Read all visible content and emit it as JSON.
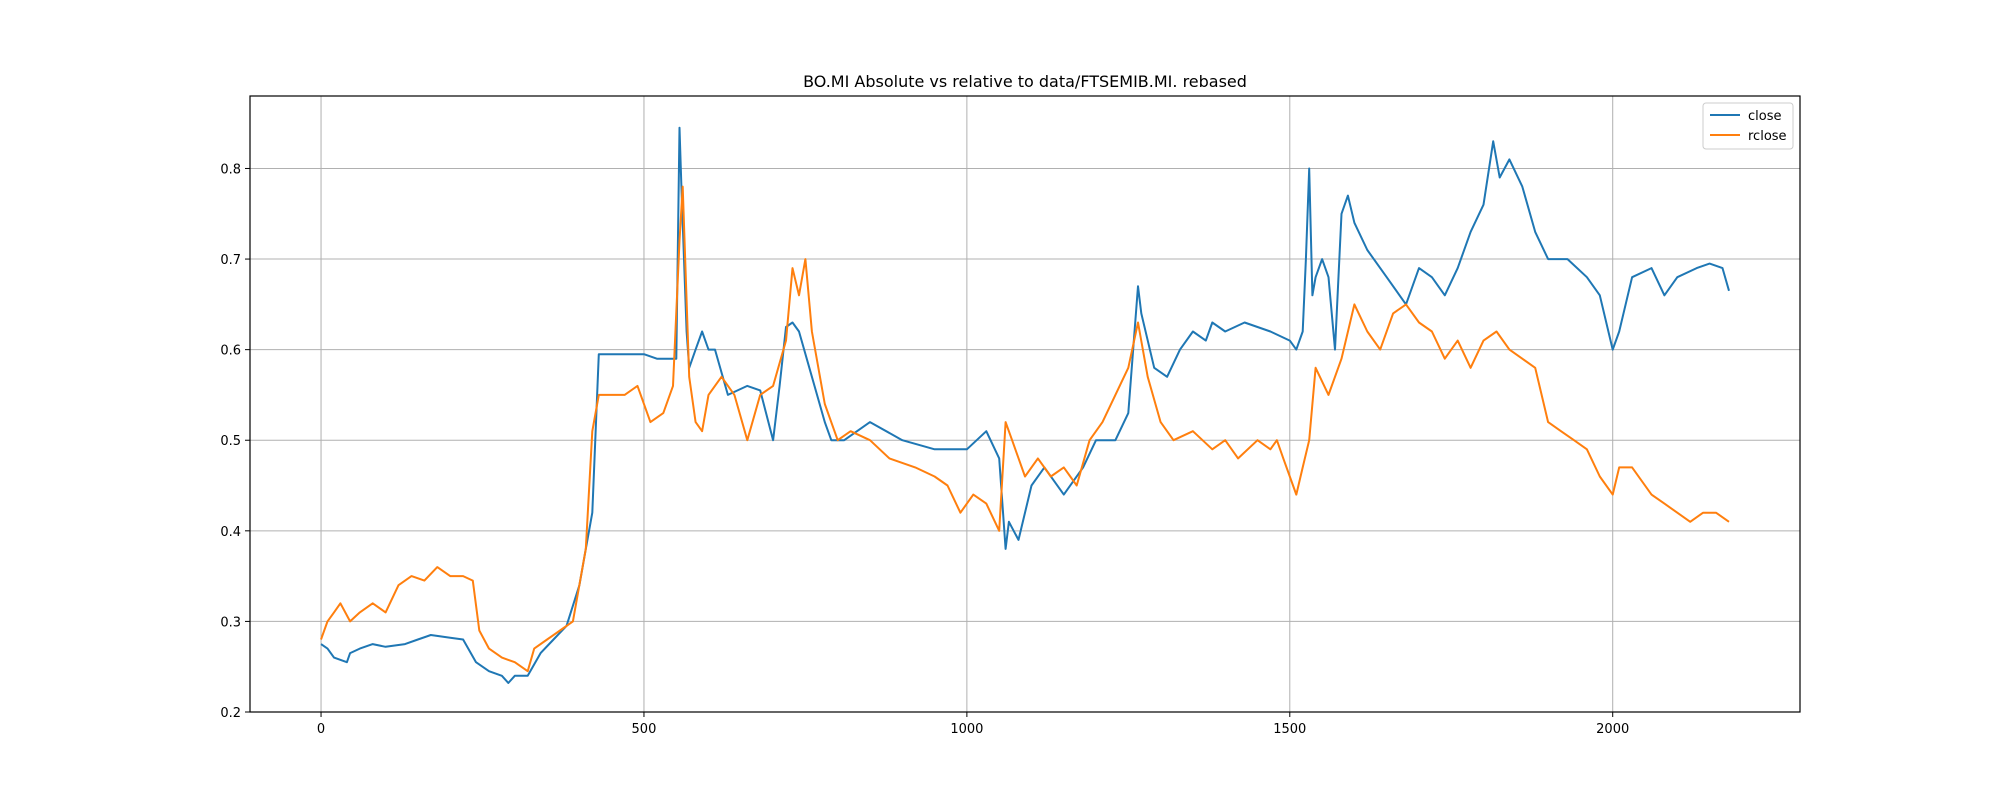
{
  "chart_data": {
    "type": "line",
    "title": "BO.MI Absolute vs relative to data/FTSEMIB.MI. rebased",
    "xlabel": "",
    "ylabel": "",
    "xlim": [
      -110,
      2290
    ],
    "ylim": [
      0.2,
      0.88
    ],
    "xticks": [
      0,
      500,
      1000,
      1500,
      2000
    ],
    "xtick_labels": [
      "0",
      "500",
      "1000",
      "1500",
      "2000"
    ],
    "yticks": [
      0.2,
      0.3,
      0.4,
      0.5,
      0.6,
      0.7,
      0.8
    ],
    "ytick_labels": [
      "0.2",
      "0.3",
      "0.4",
      "0.5",
      "0.6",
      "0.7",
      "0.8"
    ],
    "grid": true,
    "legend_position": "upper right",
    "series": [
      {
        "name": "close",
        "color": "#1f77b4",
        "x": [
          0,
          10,
          20,
          40,
          45,
          60,
          80,
          100,
          130,
          150,
          170,
          200,
          220,
          240,
          260,
          280,
          290,
          300,
          320,
          340,
          360,
          380,
          400,
          410,
          420,
          430,
          440,
          470,
          500,
          520,
          540,
          550,
          555,
          558,
          562,
          566,
          570,
          580,
          590,
          600,
          610,
          630,
          660,
          680,
          700,
          710,
          720,
          730,
          740,
          760,
          780,
          790,
          810,
          850,
          900,
          950,
          1000,
          1030,
          1050,
          1060,
          1065,
          1080,
          1100,
          1120,
          1150,
          1180,
          1200,
          1230,
          1250,
          1265,
          1270,
          1290,
          1310,
          1330,
          1350,
          1370,
          1380,
          1400,
          1430,
          1470,
          1500,
          1510,
          1520,
          1525,
          1530,
          1535,
          1540,
          1550,
          1560,
          1570,
          1580,
          1590,
          1600,
          1620,
          1650,
          1680,
          1700,
          1720,
          1740,
          1760,
          1780,
          1800,
          1815,
          1825,
          1840,
          1860,
          1880,
          1900,
          1930,
          1960,
          1980,
          2000,
          2010,
          2030,
          2060,
          2080,
          2100,
          2130,
          2150,
          2170,
          2180
        ],
        "y": [
          0.275,
          0.27,
          0.26,
          0.255,
          0.265,
          0.27,
          0.275,
          0.272,
          0.275,
          0.28,
          0.285,
          0.282,
          0.28,
          0.255,
          0.245,
          0.24,
          0.232,
          0.24,
          0.24,
          0.265,
          0.28,
          0.295,
          0.34,
          0.38,
          0.42,
          0.595,
          0.595,
          0.595,
          0.595,
          0.59,
          0.59,
          0.59,
          0.845,
          0.78,
          0.7,
          0.62,
          0.58,
          0.6,
          0.62,
          0.6,
          0.6,
          0.55,
          0.56,
          0.555,
          0.5,
          0.56,
          0.625,
          0.63,
          0.62,
          0.57,
          0.52,
          0.5,
          0.5,
          0.52,
          0.5,
          0.49,
          0.49,
          0.51,
          0.48,
          0.38,
          0.41,
          0.39,
          0.45,
          0.47,
          0.44,
          0.47,
          0.5,
          0.5,
          0.53,
          0.67,
          0.64,
          0.58,
          0.57,
          0.6,
          0.62,
          0.61,
          0.63,
          0.62,
          0.63,
          0.62,
          0.61,
          0.6,
          0.62,
          0.7,
          0.8,
          0.66,
          0.68,
          0.7,
          0.68,
          0.6,
          0.75,
          0.77,
          0.74,
          0.71,
          0.68,
          0.65,
          0.69,
          0.68,
          0.66,
          0.69,
          0.73,
          0.76,
          0.83,
          0.79,
          0.81,
          0.78,
          0.73,
          0.7,
          0.7,
          0.68,
          0.66,
          0.6,
          0.62,
          0.68,
          0.69,
          0.66,
          0.68,
          0.69,
          0.695,
          0.69,
          0.665
        ]
      },
      {
        "name": "rclose",
        "color": "#ff7f0e",
        "x": [
          0,
          10,
          20,
          30,
          45,
          60,
          80,
          100,
          120,
          140,
          160,
          180,
          200,
          220,
          235,
          245,
          260,
          280,
          300,
          320,
          330,
          350,
          370,
          390,
          410,
          420,
          430,
          450,
          470,
          490,
          510,
          530,
          545,
          555,
          560,
          570,
          580,
          590,
          600,
          620,
          640,
          660,
          680,
          700,
          720,
          730,
          740,
          750,
          760,
          780,
          800,
          820,
          850,
          880,
          920,
          950,
          970,
          990,
          1010,
          1030,
          1050,
          1060,
          1070,
          1090,
          1110,
          1130,
          1150,
          1170,
          1190,
          1210,
          1230,
          1250,
          1265,
          1280,
          1300,
          1320,
          1350,
          1380,
          1400,
          1420,
          1450,
          1470,
          1480,
          1490,
          1500,
          1510,
          1520,
          1530,
          1540,
          1560,
          1580,
          1600,
          1620,
          1640,
          1660,
          1680,
          1700,
          1720,
          1740,
          1760,
          1780,
          1800,
          1820,
          1840,
          1860,
          1880,
          1900,
          1920,
          1940,
          1960,
          1980,
          2000,
          2010,
          2030,
          2060,
          2080,
          2100,
          2120,
          2140,
          2160,
          2180
        ],
        "y": [
          0.28,
          0.3,
          0.31,
          0.32,
          0.3,
          0.31,
          0.32,
          0.31,
          0.34,
          0.35,
          0.345,
          0.36,
          0.35,
          0.35,
          0.345,
          0.29,
          0.27,
          0.26,
          0.255,
          0.245,
          0.27,
          0.28,
          0.29,
          0.3,
          0.38,
          0.51,
          0.55,
          0.55,
          0.55,
          0.56,
          0.52,
          0.53,
          0.56,
          0.72,
          0.78,
          0.57,
          0.52,
          0.51,
          0.55,
          0.57,
          0.55,
          0.5,
          0.55,
          0.56,
          0.61,
          0.69,
          0.66,
          0.7,
          0.62,
          0.54,
          0.5,
          0.51,
          0.5,
          0.48,
          0.47,
          0.46,
          0.45,
          0.42,
          0.44,
          0.43,
          0.4,
          0.52,
          0.5,
          0.46,
          0.48,
          0.46,
          0.47,
          0.45,
          0.5,
          0.52,
          0.55,
          0.58,
          0.63,
          0.57,
          0.52,
          0.5,
          0.51,
          0.49,
          0.5,
          0.48,
          0.5,
          0.49,
          0.5,
          0.48,
          0.46,
          0.44,
          0.47,
          0.5,
          0.58,
          0.55,
          0.59,
          0.65,
          0.62,
          0.6,
          0.64,
          0.65,
          0.63,
          0.62,
          0.59,
          0.61,
          0.58,
          0.61,
          0.62,
          0.6,
          0.59,
          0.58,
          0.52,
          0.51,
          0.5,
          0.49,
          0.46,
          0.44,
          0.47,
          0.47,
          0.44,
          0.43,
          0.42,
          0.41,
          0.42,
          0.42,
          0.41
        ]
      }
    ]
  }
}
